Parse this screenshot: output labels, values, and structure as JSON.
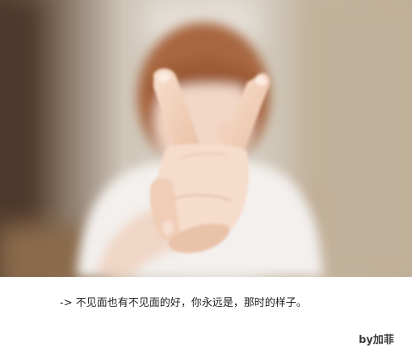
{
  "photo": {
    "subject": "blurred-person-showing-v-sign",
    "colors": {
      "background_warm": "#c8b8a2",
      "background_dark": "#5a4436",
      "hair": "#a8663f",
      "skin": "#f4d8c4",
      "shirt": "#f3f0ee"
    }
  },
  "caption": {
    "text": "-> 不见面也有不见面的好，你永远是，那时的样子。"
  },
  "signature": {
    "text": "by加菲"
  }
}
